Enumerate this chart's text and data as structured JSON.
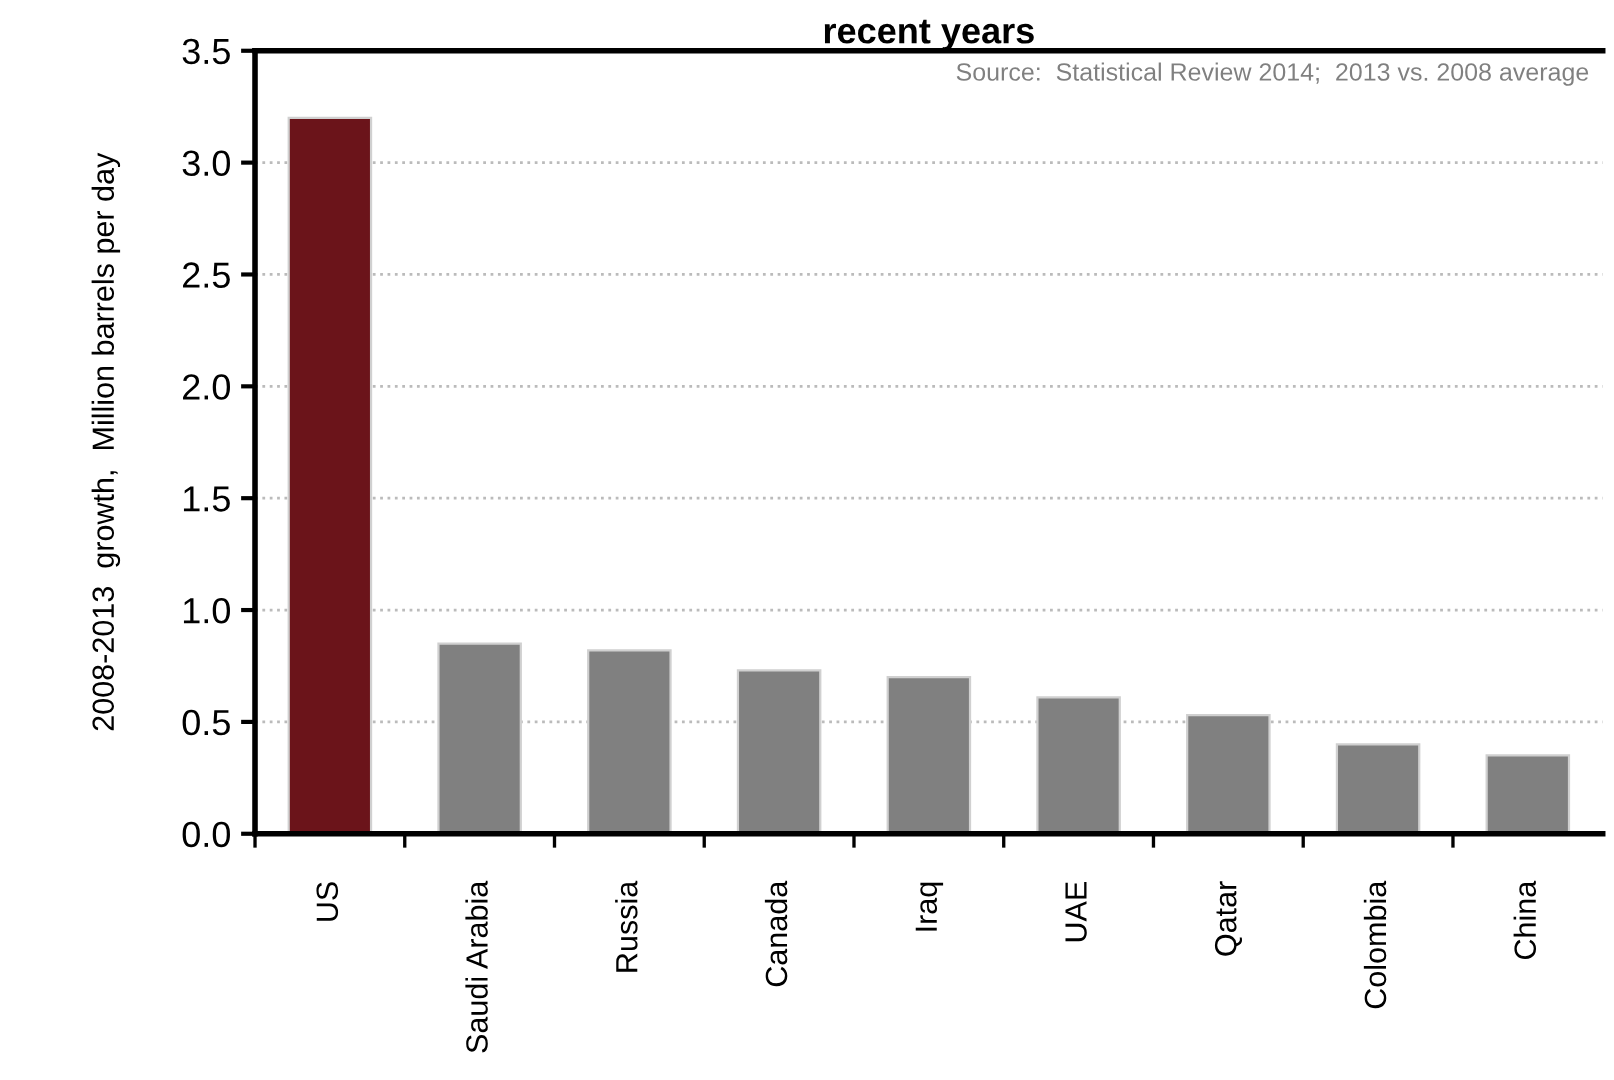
{
  "chart_data": {
    "type": "bar",
    "title": "recent years",
    "ylabel": "2008-2013  growth,  Million barrels per day",
    "annotations": [
      "Source:  Statistical Review 2014;  2013 vs. 2008 average"
    ],
    "categories": [
      "US",
      "Saudi Arabia",
      "Russia",
      "Canada",
      "Iraq",
      "UAE",
      "Qatar",
      "Colombia",
      "China"
    ],
    "values": [
      3.2,
      0.85,
      0.82,
      0.73,
      0.7,
      0.61,
      0.53,
      0.4,
      0.35
    ],
    "colors": [
      "#6b141a",
      "#808080",
      "#808080",
      "#808080",
      "#808080",
      "#808080",
      "#808080",
      "#808080",
      "#808080"
    ],
    "ylim": [
      0,
      3.5
    ],
    "yticks": [
      {
        "value": 0,
        "label": "0.0"
      },
      {
        "value": 0.5,
        "label": "0.5"
      },
      {
        "value": 1,
        "label": "1.0"
      },
      {
        "value": 1.5,
        "label": "1.5"
      },
      {
        "value": 2,
        "label": "2.0"
      },
      {
        "value": 2.5,
        "label": "2.5"
      },
      {
        "value": 3,
        "label": "3.0"
      },
      {
        "value": 3.5,
        "label": "3.5"
      }
    ],
    "grid": "y"
  }
}
